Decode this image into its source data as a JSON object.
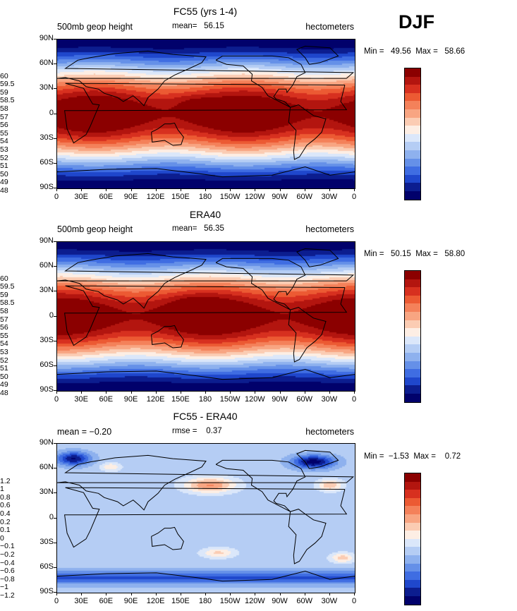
{
  "season": "DJF",
  "panels": [
    {
      "title": "FC55 (yrs 1-4)",
      "left_label": "500mb geop height",
      "mid_label": "mean=   56.15",
      "right_label": "hectometers",
      "minmax": "Min =   49.56  Max =   58.66",
      "kind": "field",
      "colorbar_labels": [
        "60",
        "59.5",
        "59",
        "58.5",
        "58",
        "57",
        "56",
        "55",
        "54",
        "53",
        "52",
        "51",
        "50",
        "49",
        "48"
      ],
      "colorbar_colors": [
        "#8b0000",
        "#b3150f",
        "#d7301f",
        "#ec5a33",
        "#f4815a",
        "#f8a582",
        "#fbccb3",
        "#fdeee4",
        "#dbe7fa",
        "#b5cdf4",
        "#8eb1ee",
        "#6590e8",
        "#3f6de2",
        "#1f47cc",
        "#0c1d8f",
        "#01016b"
      ]
    },
    {
      "title": "ERA40",
      "left_label": "500mb geop height",
      "mid_label": "mean=   56.35",
      "right_label": "hectometers",
      "minmax": "Min =   50.15  Max =   58.80",
      "kind": "field",
      "colorbar_labels": [
        "60",
        "59.5",
        "59",
        "58.5",
        "58",
        "57",
        "56",
        "55",
        "54",
        "53",
        "52",
        "51",
        "50",
        "49",
        "48"
      ],
      "colorbar_colors": [
        "#8b0000",
        "#b3150f",
        "#d7301f",
        "#ec5a33",
        "#f4815a",
        "#f8a582",
        "#fbccb3",
        "#fdeee4",
        "#dbe7fa",
        "#b5cdf4",
        "#8eb1ee",
        "#6590e8",
        "#3f6de2",
        "#1f47cc",
        "#0c1d8f",
        "#01016b"
      ]
    },
    {
      "title": "FC55 - ERA40",
      "left_label": "mean =   −0.20",
      "mid_label": "rmse =    0.37",
      "right_label": "hectometers",
      "minmax": "Min =  −1.53  Max =    0.72",
      "kind": "diff",
      "colorbar_labels": [
        "1.2",
        "1",
        "0.8",
        "0.6",
        "0.4",
        "0.2",
        "0.1",
        "0",
        "−0.1",
        "−0.2",
        "−0.4",
        "−0.6",
        "−0.8",
        "−1",
        "−1.2"
      ],
      "colorbar_colors": [
        "#8b0000",
        "#b3150f",
        "#d7301f",
        "#ec5a33",
        "#f4815a",
        "#f8a582",
        "#fbccb3",
        "#fdeee4",
        "#dbe7fa",
        "#b5cdf4",
        "#8eb1ee",
        "#6590e8",
        "#3f6de2",
        "#1f47cc",
        "#0c1d8f",
        "#01016b"
      ]
    }
  ],
  "lat_ticks": [
    "90N",
    "60N",
    "30N",
    "0",
    "30S",
    "60S",
    "90S"
  ],
  "lon_ticks": [
    "0",
    "30E",
    "60E",
    "90E",
    "120E",
    "150E",
    "180",
    "150W",
    "120W",
    "90W",
    "60W",
    "30W",
    "0"
  ]
}
